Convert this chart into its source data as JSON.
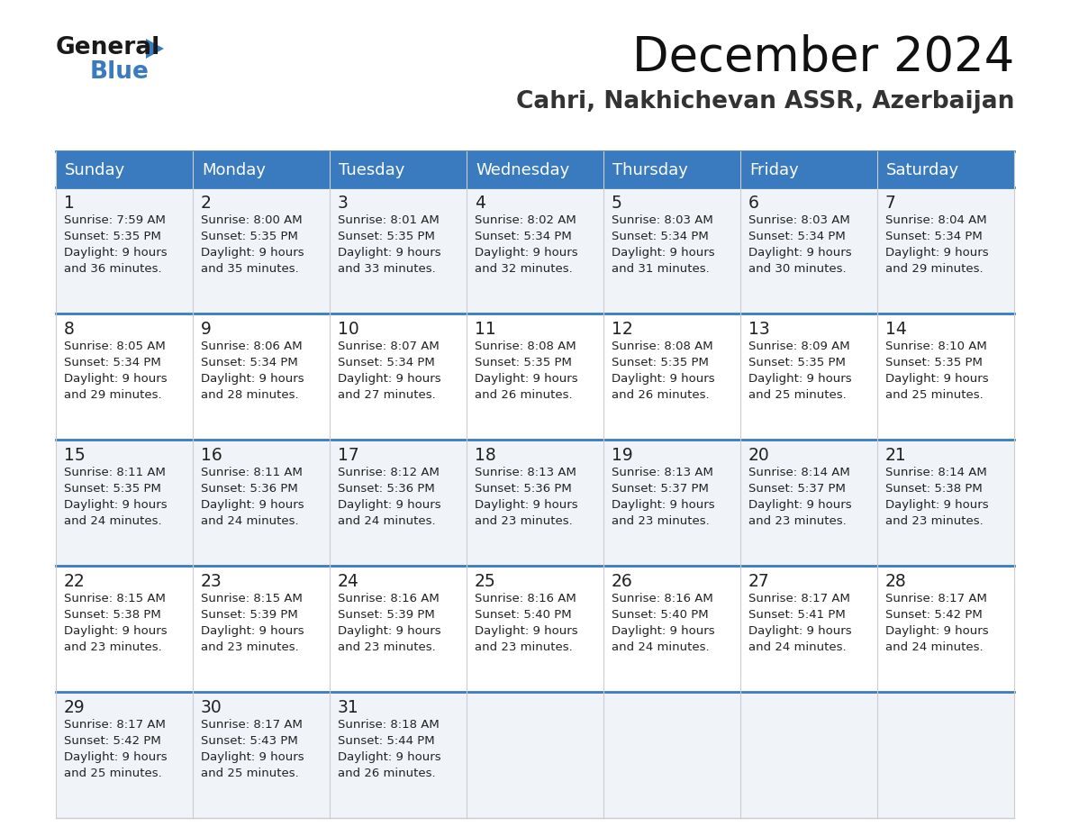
{
  "title": "December 2024",
  "subtitle": "Cahri, Nakhichevan ASSR, Azerbaijan",
  "header_color": "#3a7bbf",
  "header_text_color": "#ffffff",
  "day_headers": [
    "Sunday",
    "Monday",
    "Tuesday",
    "Wednesday",
    "Thursday",
    "Friday",
    "Saturday"
  ],
  "days": [
    {
      "day": 1,
      "col": 0,
      "row": 0,
      "sunrise": "7:59 AM",
      "sunset": "5:35 PM",
      "daylight_mins": "36"
    },
    {
      "day": 2,
      "col": 1,
      "row": 0,
      "sunrise": "8:00 AM",
      "sunset": "5:35 PM",
      "daylight_mins": "35"
    },
    {
      "day": 3,
      "col": 2,
      "row": 0,
      "sunrise": "8:01 AM",
      "sunset": "5:35 PM",
      "daylight_mins": "33"
    },
    {
      "day": 4,
      "col": 3,
      "row": 0,
      "sunrise": "8:02 AM",
      "sunset": "5:34 PM",
      "daylight_mins": "32"
    },
    {
      "day": 5,
      "col": 4,
      "row": 0,
      "sunrise": "8:03 AM",
      "sunset": "5:34 PM",
      "daylight_mins": "31"
    },
    {
      "day": 6,
      "col": 5,
      "row": 0,
      "sunrise": "8:03 AM",
      "sunset": "5:34 PM",
      "daylight_mins": "30"
    },
    {
      "day": 7,
      "col": 6,
      "row": 0,
      "sunrise": "8:04 AM",
      "sunset": "5:34 PM",
      "daylight_mins": "29"
    },
    {
      "day": 8,
      "col": 0,
      "row": 1,
      "sunrise": "8:05 AM",
      "sunset": "5:34 PM",
      "daylight_mins": "29"
    },
    {
      "day": 9,
      "col": 1,
      "row": 1,
      "sunrise": "8:06 AM",
      "sunset": "5:34 PM",
      "daylight_mins": "28"
    },
    {
      "day": 10,
      "col": 2,
      "row": 1,
      "sunrise": "8:07 AM",
      "sunset": "5:34 PM",
      "daylight_mins": "27"
    },
    {
      "day": 11,
      "col": 3,
      "row": 1,
      "sunrise": "8:08 AM",
      "sunset": "5:35 PM",
      "daylight_mins": "26"
    },
    {
      "day": 12,
      "col": 4,
      "row": 1,
      "sunrise": "8:08 AM",
      "sunset": "5:35 PM",
      "daylight_mins": "26"
    },
    {
      "day": 13,
      "col": 5,
      "row": 1,
      "sunrise": "8:09 AM",
      "sunset": "5:35 PM",
      "daylight_mins": "25"
    },
    {
      "day": 14,
      "col": 6,
      "row": 1,
      "sunrise": "8:10 AM",
      "sunset": "5:35 PM",
      "daylight_mins": "25"
    },
    {
      "day": 15,
      "col": 0,
      "row": 2,
      "sunrise": "8:11 AM",
      "sunset": "5:35 PM",
      "daylight_mins": "24"
    },
    {
      "day": 16,
      "col": 1,
      "row": 2,
      "sunrise": "8:11 AM",
      "sunset": "5:36 PM",
      "daylight_mins": "24"
    },
    {
      "day": 17,
      "col": 2,
      "row": 2,
      "sunrise": "8:12 AM",
      "sunset": "5:36 PM",
      "daylight_mins": "24"
    },
    {
      "day": 18,
      "col": 3,
      "row": 2,
      "sunrise": "8:13 AM",
      "sunset": "5:36 PM",
      "daylight_mins": "23"
    },
    {
      "day": 19,
      "col": 4,
      "row": 2,
      "sunrise": "8:13 AM",
      "sunset": "5:37 PM",
      "daylight_mins": "23"
    },
    {
      "day": 20,
      "col": 5,
      "row": 2,
      "sunrise": "8:14 AM",
      "sunset": "5:37 PM",
      "daylight_mins": "23"
    },
    {
      "day": 21,
      "col": 6,
      "row": 2,
      "sunrise": "8:14 AM",
      "sunset": "5:38 PM",
      "daylight_mins": "23"
    },
    {
      "day": 22,
      "col": 0,
      "row": 3,
      "sunrise": "8:15 AM",
      "sunset": "5:38 PM",
      "daylight_mins": "23"
    },
    {
      "day": 23,
      "col": 1,
      "row": 3,
      "sunrise": "8:15 AM",
      "sunset": "5:39 PM",
      "daylight_mins": "23"
    },
    {
      "day": 24,
      "col": 2,
      "row": 3,
      "sunrise": "8:16 AM",
      "sunset": "5:39 PM",
      "daylight_mins": "23"
    },
    {
      "day": 25,
      "col": 3,
      "row": 3,
      "sunrise": "8:16 AM",
      "sunset": "5:40 PM",
      "daylight_mins": "23"
    },
    {
      "day": 26,
      "col": 4,
      "row": 3,
      "sunrise": "8:16 AM",
      "sunset": "5:40 PM",
      "daylight_mins": "24"
    },
    {
      "day": 27,
      "col": 5,
      "row": 3,
      "sunrise": "8:17 AM",
      "sunset": "5:41 PM",
      "daylight_mins": "24"
    },
    {
      "day": 28,
      "col": 6,
      "row": 3,
      "sunrise": "8:17 AM",
      "sunset": "5:42 PM",
      "daylight_mins": "24"
    },
    {
      "day": 29,
      "col": 0,
      "row": 4,
      "sunrise": "8:17 AM",
      "sunset": "5:42 PM",
      "daylight_mins": "25"
    },
    {
      "day": 30,
      "col": 1,
      "row": 4,
      "sunrise": "8:17 AM",
      "sunset": "5:43 PM",
      "daylight_mins": "25"
    },
    {
      "day": 31,
      "col": 2,
      "row": 4,
      "sunrise": "8:18 AM",
      "sunset": "5:44 PM",
      "daylight_mins": "26"
    }
  ],
  "num_rows": 5,
  "logo_color_black": "#1a1a1a",
  "logo_color_blue": "#3a7bbf",
  "bg_color_even": "#f0f4f8",
  "bg_color_odd": "#ffffff",
  "border_color": "#cccccc",
  "text_color": "#222222"
}
